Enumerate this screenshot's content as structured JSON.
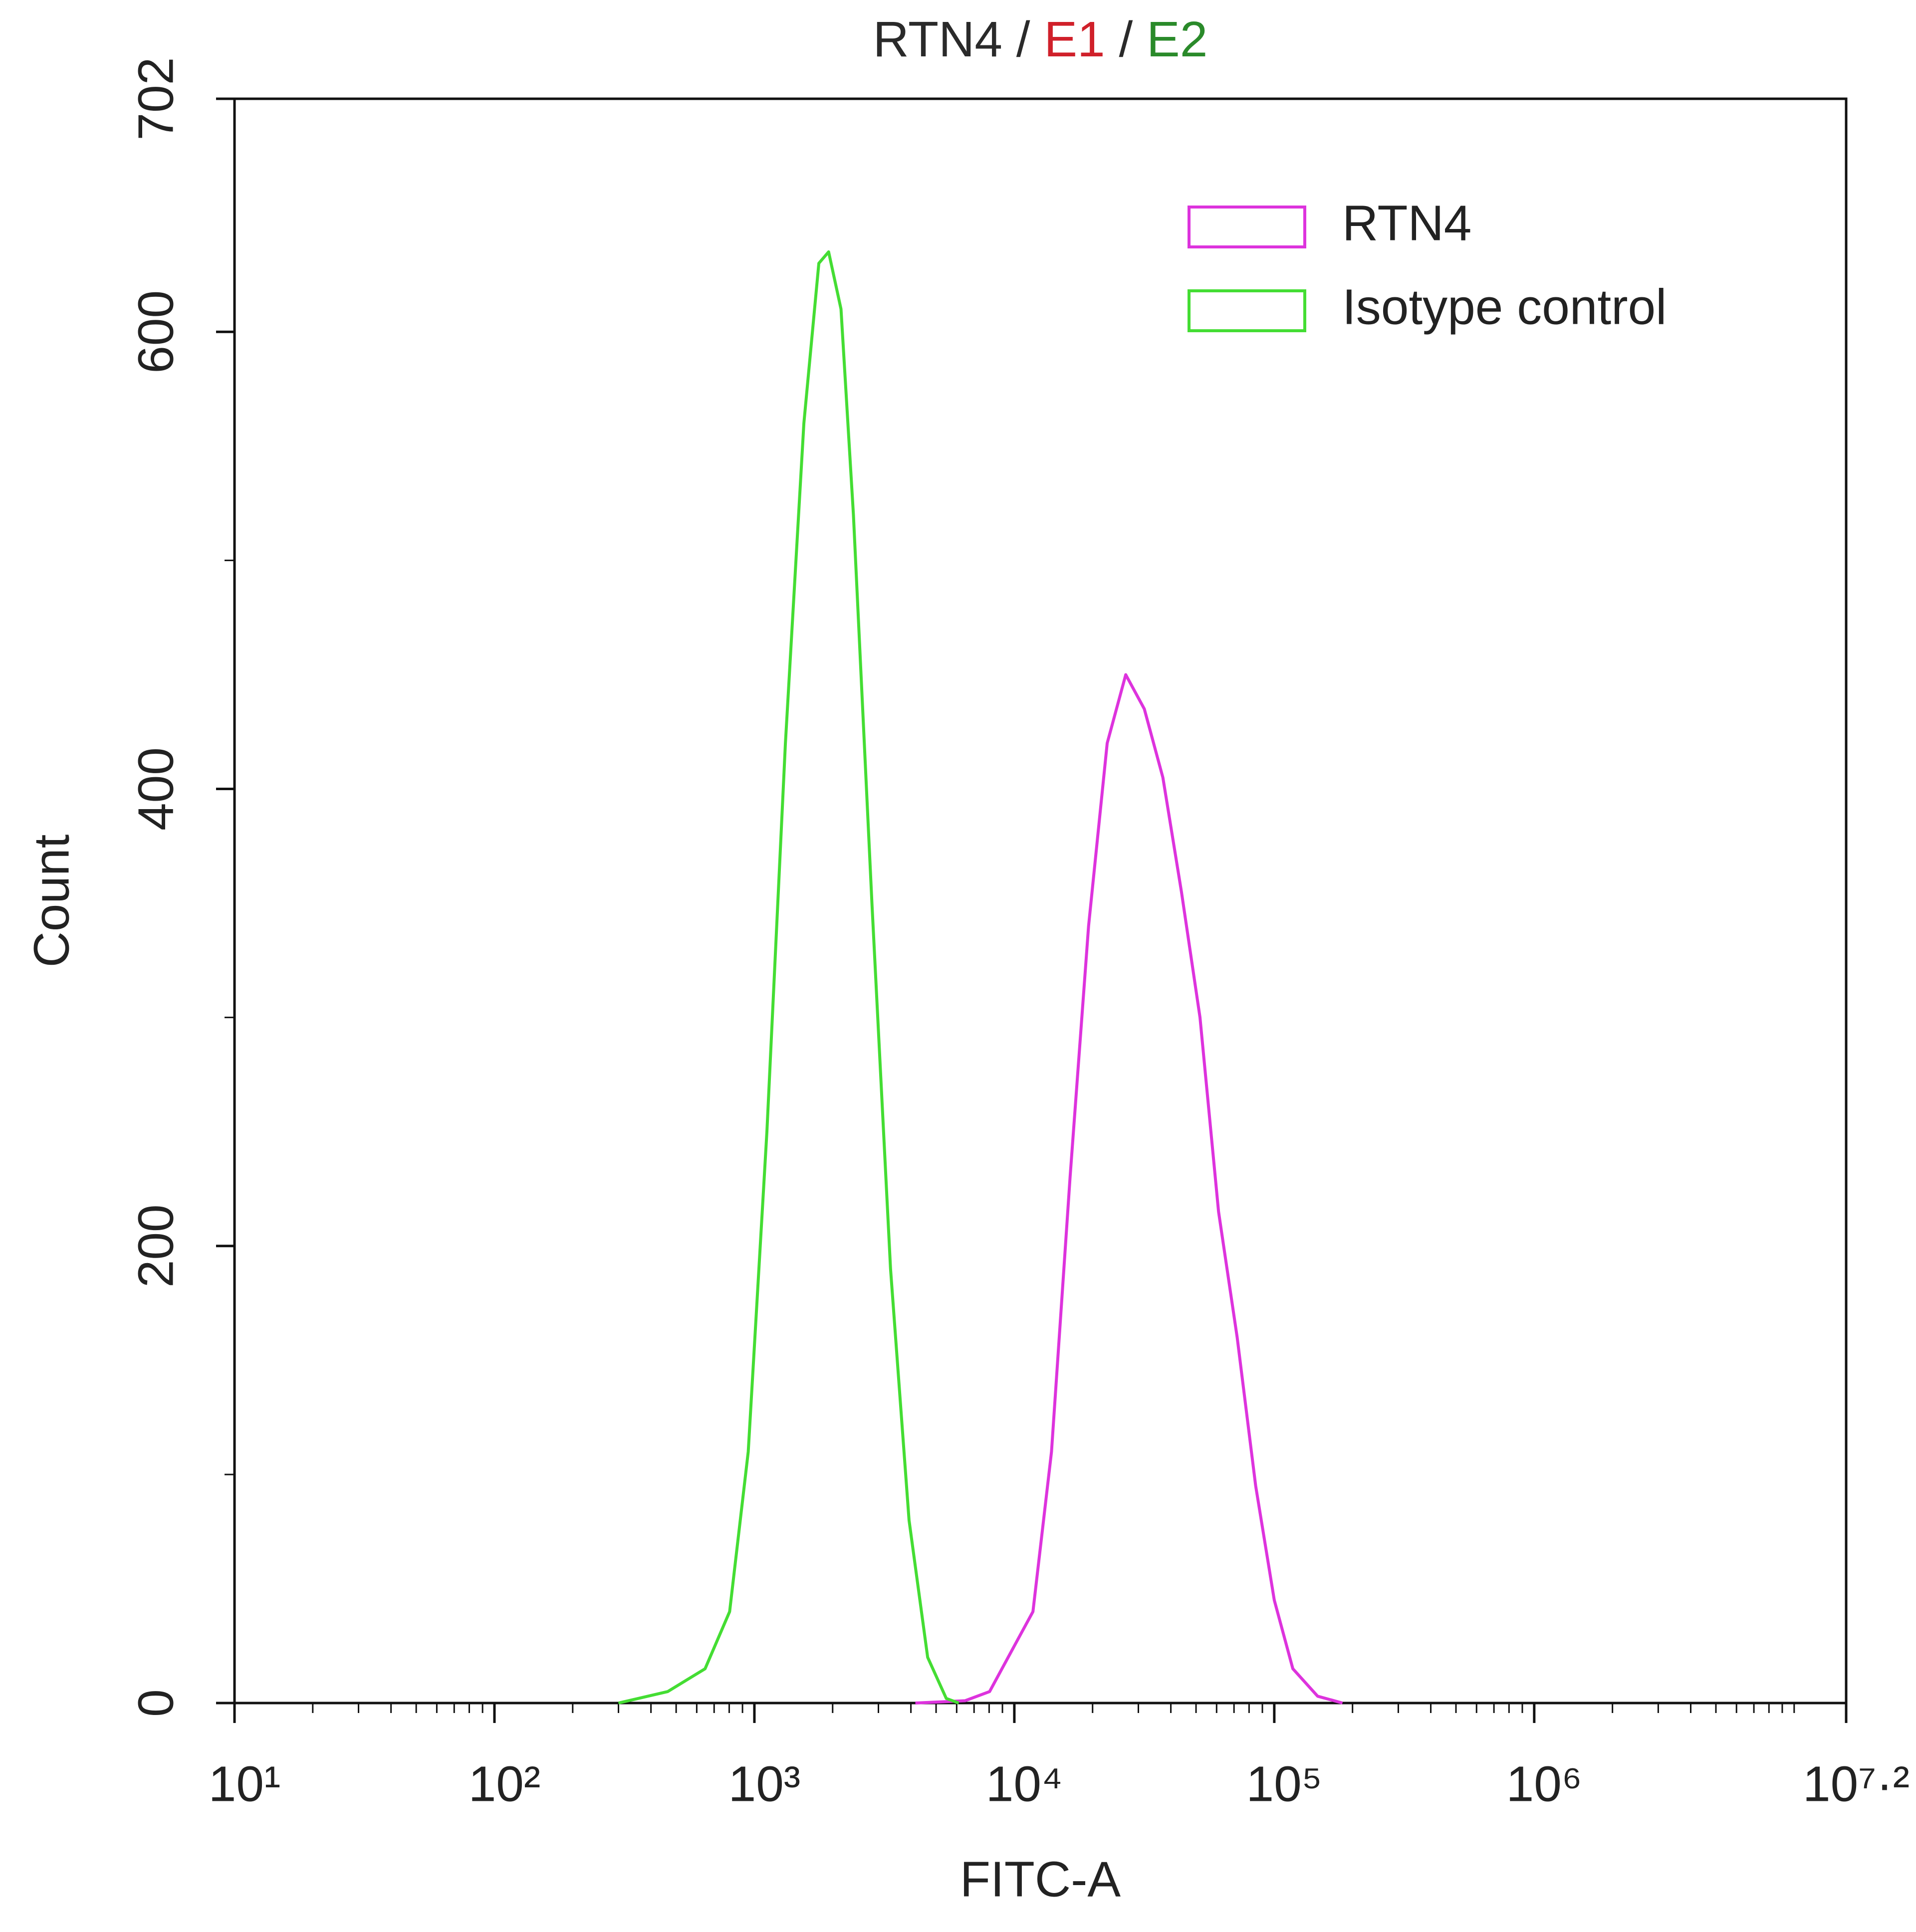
{
  "chart_data": {
    "type": "line",
    "title_parts": [
      {
        "text": "RTN4",
        "color": "#2a2a2a"
      },
      {
        "text": " / ",
        "color": "#2a2a2a"
      },
      {
        "text": "E1",
        "color": "#d0202a"
      },
      {
        "text": " / ",
        "color": "#2a2a2a"
      },
      {
        "text": "E2",
        "color": "#2a8a2a"
      }
    ],
    "x_label": "FITC-A",
    "y_label": "Count",
    "xscale": "log",
    "xlim": [
      10,
      15848931.92
    ],
    "ylim": [
      0,
      702
    ],
    "xticks": [
      {
        "value": 10,
        "label": "10¹"
      },
      {
        "value": 100,
        "label": "10²"
      },
      {
        "value": 1000,
        "label": "10³"
      },
      {
        "value": 10000,
        "label": "10⁴"
      },
      {
        "value": 100000,
        "label": "10⁵"
      },
      {
        "value": 1000000,
        "label": "10⁶"
      },
      {
        "value": 15848931.92,
        "label": "10⁷·²"
      }
    ],
    "xminorticks": [
      20,
      30,
      40,
      50,
      60,
      70,
      80,
      90,
      200,
      300,
      400,
      500,
      600,
      700,
      800,
      900,
      2000,
      3000,
      4000,
      5000,
      6000,
      7000,
      8000,
      9000,
      20000,
      30000,
      40000,
      50000,
      60000,
      70000,
      80000,
      90000,
      200000,
      300000,
      400000,
      500000,
      600000,
      700000,
      800000,
      900000,
      2000000,
      3000000,
      4000000,
      5000000,
      6000000,
      7000000,
      8000000,
      9000000,
      10000000
    ],
    "yticks": [
      0,
      200,
      400,
      600,
      702
    ],
    "yminorticks": [
      100,
      300,
      500
    ],
    "legend": "upper right",
    "series": [
      {
        "name": "RTN4",
        "color": "#dd33dd",
        "x": [
          4160,
          6460,
          8030,
          10000,
          11790,
          13900,
          16380,
          19300,
          22760,
          26830,
          31620,
          37280,
          43940,
          51790,
          61050,
          71970,
          84830,
          100000,
          117900,
          146800,
          182900
        ],
        "values": [
          0,
          1,
          5,
          25,
          40,
          110,
          230,
          340,
          420,
          450,
          435,
          405,
          355,
          300,
          215,
          160,
          95,
          45,
          15,
          3,
          0
        ]
      },
      {
        "name": "Isotype control",
        "color": "#44dd33",
        "x": [
          300,
          464,
          646,
          803,
          947,
          1117,
          1316,
          1550,
          1770,
          1930,
          2154,
          2404,
          2832,
          3340,
          3936,
          4641,
          5473,
          6110
        ],
        "values": [
          0,
          5,
          15,
          40,
          110,
          250,
          420,
          560,
          630,
          635,
          610,
          520,
          350,
          190,
          80,
          20,
          2,
          0
        ]
      }
    ]
  }
}
